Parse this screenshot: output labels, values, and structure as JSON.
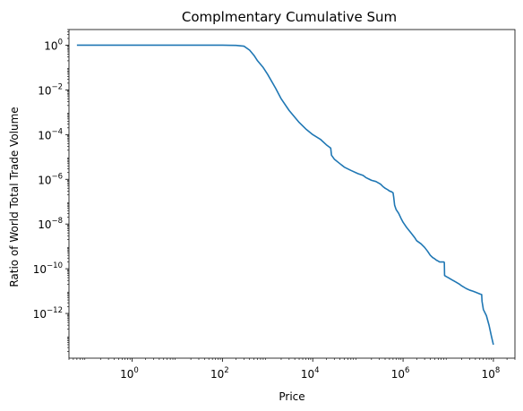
{
  "chart_data": {
    "type": "line",
    "title": "Complmentary Cumulative Sum",
    "xlabel": "Price",
    "ylabel": "Ratio of World Total Trade Volume",
    "xscale": "log",
    "yscale": "log",
    "xlim": [
      0.04,
      300000000
    ],
    "ylim": [
      1e-14,
      5
    ],
    "grid": false,
    "legend": "none",
    "x_ticks": [
      {
        "value": 1,
        "base": "10",
        "exp": "0"
      },
      {
        "value": 100,
        "base": "10",
        "exp": "2"
      },
      {
        "value": 10000,
        "base": "10",
        "exp": "4"
      },
      {
        "value": 1000000,
        "base": "10",
        "exp": "6"
      },
      {
        "value": 100000000,
        "base": "10",
        "exp": "8"
      }
    ],
    "y_ticks": [
      {
        "value": 1,
        "base": "10",
        "exp": "0"
      },
      {
        "value": 0.01,
        "base": "10",
        "exp": "−2"
      },
      {
        "value": 0.0001,
        "base": "10",
        "exp": "−4"
      },
      {
        "value": 1e-06,
        "base": "10",
        "exp": "−6"
      },
      {
        "value": 1e-08,
        "base": "10",
        "exp": "−8"
      },
      {
        "value": 1e-10,
        "base": "10",
        "exp": "−10"
      },
      {
        "value": 1e-12,
        "base": "10",
        "exp": "−12"
      }
    ],
    "line_color": "#1f77b4",
    "series": [
      {
        "x": [
          0.06,
          0.1,
          1,
          10,
          100,
          200,
          300,
          400,
          500,
          600,
          800,
          1000,
          1500,
          2000,
          3000,
          5000,
          7000,
          10000,
          15000,
          20000,
          25000,
          26000,
          30000,
          40000,
          50000,
          70000,
          100000,
          130000,
          150000,
          180000,
          200000,
          250000,
          300000,
          320000,
          350000,
          370000,
          400000,
          450000,
          500000,
          550000,
          600000,
          620000,
          650000,
          700000,
          800000,
          900000,
          1000000,
          1200000,
          1500000,
          1800000,
          2000000,
          2500000,
          3000000,
          3500000,
          4000000,
          4500000,
          5000000,
          5500000,
          6000000,
          6200000,
          6500000,
          7000000,
          7500000,
          8000000,
          8200000,
          8300000,
          9000000,
          10000000,
          12000000,
          15000000,
          18000000,
          20000000,
          25000000,
          30000000,
          35000000,
          40000000,
          50000000,
          55000000,
          56000000,
          60000000,
          70000000,
          80000000,
          90000000,
          100000000
        ],
        "y": [
          1,
          1,
          1,
          1,
          1,
          0.98,
          0.9,
          0.6,
          0.35,
          0.2,
          0.1,
          0.05,
          0.012,
          0.004,
          0.0012,
          0.00035,
          0.00018,
          0.0001,
          6e-05,
          3.5e-05,
          2.5e-05,
          1.2e-05,
          8e-06,
          5e-06,
          3.5e-06,
          2.5e-06,
          1.8e-06,
          1.5e-06,
          1.2e-06,
          1e-06,
          9e-07,
          8e-07,
          6.5e-07,
          6e-07,
          5e-07,
          4.5e-07,
          4e-07,
          3.5e-07,
          3e-07,
          2.8e-07,
          2.5e-07,
          1.6e-07,
          7e-08,
          4.5e-08,
          3e-08,
          1.8e-08,
          1.2e-08,
          7e-09,
          4e-09,
          2.5e-09,
          1.8e-09,
          1.3e-09,
          9e-10,
          6e-10,
          4e-10,
          3.2e-10,
          2.8e-10,
          2.4e-10,
          2.2e-10,
          2.1e-10,
          2e-10,
          2e-10,
          2e-10,
          2e-10,
          1.9e-10,
          5e-11,
          4.5e-11,
          4e-11,
          3.2e-11,
          2.5e-11,
          2e-11,
          1.7e-11,
          1.3e-11,
          1.1e-11,
          1e-11,
          9e-12,
          7.5e-12,
          7e-12,
          3.5e-12,
          1.5e-12,
          8e-13,
          3e-13,
          1e-13,
          4e-14
        ]
      }
    ]
  }
}
